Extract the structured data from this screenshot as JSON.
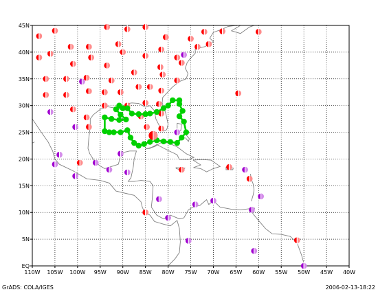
{
  "map": {
    "extent": {
      "lon": [
        -110,
        -40
      ],
      "lat": [
        0,
        45
      ]
    },
    "x_ticks": [
      "110W",
      "105W",
      "100W",
      "95W",
      "90W",
      "85W",
      "80W",
      "75W",
      "70W",
      "65W",
      "60W",
      "55W",
      "50W",
      "45W",
      "40W"
    ],
    "y_ticks": [
      "EQ",
      "5N",
      "10N",
      "15N",
      "20N",
      "25N",
      "30N",
      "35N",
      "40N",
      "45N"
    ],
    "grid": true,
    "colors": {
      "track": "#00d000",
      "red": "#ff0000",
      "purple": "#a000d0",
      "coast": "#808080",
      "grid": "#000000"
    },
    "track_points": [
      [
        -90.0,
        29.5
      ],
      [
        -90.8,
        30.0
      ],
      [
        -91.5,
        29.3
      ],
      [
        -90.5,
        28.3
      ],
      [
        -89.3,
        27.4
      ],
      [
        -90.8,
        27.3
      ],
      [
        -92.5,
        27.5
      ],
      [
        -94.0,
        27.8
      ],
      [
        -94.0,
        25.2
      ],
      [
        -93.0,
        25.0
      ],
      [
        -92.0,
        25.0
      ],
      [
        -90.5,
        25.0
      ],
      [
        -89.0,
        25.4
      ],
      [
        -88.3,
        24.0
      ],
      [
        -87.5,
        23.0
      ],
      [
        -86.5,
        22.5
      ],
      [
        -85.3,
        22.8
      ],
      [
        -84.0,
        23.2
      ],
      [
        -82.5,
        23.5
      ],
      [
        -81.0,
        23.3
      ],
      [
        -79.5,
        23.2
      ],
      [
        -78.0,
        23.0
      ],
      [
        -77.0,
        24.0
      ],
      [
        -76.0,
        25.0
      ],
      [
        -76.5,
        27.0
      ],
      [
        -77.5,
        28.0
      ],
      [
        -76.8,
        29.0
      ],
      [
        -77.5,
        30.3
      ],
      [
        -77.5,
        31.0
      ],
      [
        -79.0,
        31.0
      ],
      [
        -80.0,
        30.0
      ],
      [
        -81.0,
        29.5
      ],
      [
        -82.5,
        28.8
      ],
      [
        -84.0,
        28.5
      ],
      [
        -85.0,
        28.4
      ],
      [
        -86.5,
        28.4
      ],
      [
        -88.0,
        28.5
      ],
      [
        -89.0,
        29.5
      ],
      [
        -90.0,
        29.5
      ]
    ],
    "current_position": [
      -83.3,
      24.4
    ],
    "storm_symbols": [
      {
        "lon": -108.5,
        "lat": 43.0,
        "type": "red"
      },
      {
        "lon": -105.0,
        "lat": 44.0,
        "type": "red"
      },
      {
        "lon": -93.5,
        "lat": 44.7,
        "type": "red"
      },
      {
        "lon": -89.0,
        "lat": 44.3,
        "type": "red"
      },
      {
        "lon": -85.0,
        "lat": 44.7,
        "type": "red"
      },
      {
        "lon": -80.5,
        "lat": 42.8,
        "type": "red"
      },
      {
        "lon": -72.0,
        "lat": 43.8,
        "type": "red"
      },
      {
        "lon": -68.0,
        "lat": 43.9,
        "type": "red"
      },
      {
        "lon": -60.0,
        "lat": 43.8,
        "type": "red"
      },
      {
        "lon": -108.5,
        "lat": 39.0,
        "type": "red"
      },
      {
        "lon": -106.0,
        "lat": 39.7,
        "type": "red"
      },
      {
        "lon": -101.5,
        "lat": 41.0,
        "type": "red"
      },
      {
        "lon": -97.5,
        "lat": 41.0,
        "type": "red"
      },
      {
        "lon": -91.0,
        "lat": 41.5,
        "type": "red"
      },
      {
        "lon": -90.0,
        "lat": 40.0,
        "type": "red"
      },
      {
        "lon": -85.0,
        "lat": 39.3,
        "type": "red"
      },
      {
        "lon": -81.5,
        "lat": 40.5,
        "type": "red"
      },
      {
        "lon": -78.0,
        "lat": 39.0,
        "type": "red"
      },
      {
        "lon": -77.0,
        "lat": 38.0,
        "type": "red"
      },
      {
        "lon": -75.0,
        "lat": 42.5,
        "type": "red"
      },
      {
        "lon": -73.5,
        "lat": 41.0,
        "type": "red"
      },
      {
        "lon": -71.0,
        "lat": 41.5,
        "type": "red"
      },
      {
        "lon": -76.5,
        "lat": 39.5,
        "type": "purple"
      },
      {
        "lon": -101.0,
        "lat": 37.8,
        "type": "red"
      },
      {
        "lon": -97.0,
        "lat": 39.0,
        "type": "red"
      },
      {
        "lon": -93.5,
        "lat": 37.5,
        "type": "red"
      },
      {
        "lon": -87.5,
        "lat": 36.2,
        "type": "red"
      },
      {
        "lon": -81.7,
        "lat": 37.2,
        "type": "red"
      },
      {
        "lon": -81.2,
        "lat": 35.8,
        "type": "red"
      },
      {
        "lon": -107.0,
        "lat": 35.0,
        "type": "red"
      },
      {
        "lon": -102.5,
        "lat": 35.0,
        "type": "red"
      },
      {
        "lon": -99.0,
        "lat": 34.5,
        "type": "purple"
      },
      {
        "lon": -98.0,
        "lat": 35.2,
        "type": "red"
      },
      {
        "lon": -92.5,
        "lat": 34.7,
        "type": "red"
      },
      {
        "lon": -86.5,
        "lat": 33.5,
        "type": "red"
      },
      {
        "lon": -84.0,
        "lat": 33.5,
        "type": "red"
      },
      {
        "lon": -81.5,
        "lat": 32.8,
        "type": "red"
      },
      {
        "lon": -78.0,
        "lat": 34.7,
        "type": "red"
      },
      {
        "lon": -107.0,
        "lat": 32.0,
        "type": "red"
      },
      {
        "lon": -102.5,
        "lat": 32.0,
        "type": "red"
      },
      {
        "lon": -97.5,
        "lat": 32.7,
        "type": "red"
      },
      {
        "lon": -94.0,
        "lat": 32.5,
        "type": "red"
      },
      {
        "lon": -90.5,
        "lat": 32.5,
        "type": "red"
      },
      {
        "lon": -64.5,
        "lat": 32.3,
        "type": "red"
      },
      {
        "lon": -106.0,
        "lat": 28.8,
        "type": "purple"
      },
      {
        "lon": -101.0,
        "lat": 29.3,
        "type": "red"
      },
      {
        "lon": -94.0,
        "lat": 30.0,
        "type": "red"
      },
      {
        "lon": -89.0,
        "lat": 30.0,
        "type": "red"
      },
      {
        "lon": -85.0,
        "lat": 30.5,
        "type": "red"
      },
      {
        "lon": -82.0,
        "lat": 30.3,
        "type": "red"
      },
      {
        "lon": -98.0,
        "lat": 27.8,
        "type": "red"
      },
      {
        "lon": -97.5,
        "lat": 26.0,
        "type": "red"
      },
      {
        "lon": -100.5,
        "lat": 26.0,
        "type": "purple"
      },
      {
        "lon": -84.7,
        "lat": 26.0,
        "type": "red"
      },
      {
        "lon": -81.5,
        "lat": 28.5,
        "type": "red"
      },
      {
        "lon": -81.5,
        "lat": 25.7,
        "type": "red"
      },
      {
        "lon": -78.0,
        "lat": 25.0,
        "type": "purple"
      },
      {
        "lon": -86.0,
        "lat": 28.0,
        "type": "red"
      },
      {
        "lon": -104.0,
        "lat": 20.8,
        "type": "purple"
      },
      {
        "lon": -105.0,
        "lat": 19.0,
        "type": "purple"
      },
      {
        "lon": -99.5,
        "lat": 19.3,
        "type": "red"
      },
      {
        "lon": -96.0,
        "lat": 19.3,
        "type": "purple"
      },
      {
        "lon": -93.0,
        "lat": 18.0,
        "type": "purple"
      },
      {
        "lon": -90.5,
        "lat": 21.0,
        "type": "purple"
      },
      {
        "lon": -89.0,
        "lat": 17.5,
        "type": "purple"
      },
      {
        "lon": -100.5,
        "lat": 16.8,
        "type": "purple"
      },
      {
        "lon": -77.0,
        "lat": 18.0,
        "type": "red"
      },
      {
        "lon": -66.5,
        "lat": 18.5,
        "type": "red"
      },
      {
        "lon": -63.0,
        "lat": 18.0,
        "type": "purple"
      },
      {
        "lon": -62.0,
        "lat": 16.3,
        "type": "red"
      },
      {
        "lon": -82.0,
        "lat": 12.5,
        "type": "purple"
      },
      {
        "lon": -74.0,
        "lat": 11.5,
        "type": "purple"
      },
      {
        "lon": -70.0,
        "lat": 12.2,
        "type": "purple"
      },
      {
        "lon": -61.5,
        "lat": 10.5,
        "type": "purple"
      },
      {
        "lon": -59.5,
        "lat": 13.0,
        "type": "purple"
      },
      {
        "lon": -85.0,
        "lat": 10.0,
        "type": "red"
      },
      {
        "lon": -80.0,
        "lat": 9.0,
        "type": "purple"
      },
      {
        "lon": -75.5,
        "lat": 4.7,
        "type": "purple"
      },
      {
        "lon": -51.5,
        "lat": 4.8,
        "type": "red"
      },
      {
        "lon": -61.0,
        "lat": 2.8,
        "type": "purple"
      },
      {
        "lon": -50.0,
        "lat": 0.0,
        "type": "purple"
      }
    ]
  },
  "footer": {
    "credit": "GrADS: COLA/IGES",
    "timestamp": "2006-02-13-18:22"
  }
}
